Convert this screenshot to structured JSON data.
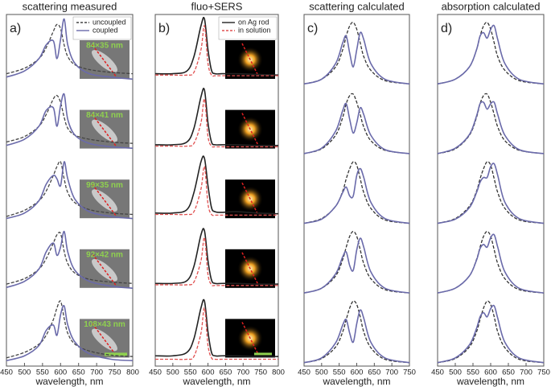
{
  "chart_data": [
    {
      "type": "line",
      "title": "scattering measured",
      "panel": "a)",
      "xlabel": "wavelength, nm",
      "xlim": [
        450,
        800
      ],
      "xticks": [
        450,
        500,
        550,
        600,
        650,
        700,
        750,
        800
      ],
      "legend": "upper right",
      "x": [
        450,
        500,
        540,
        560,
        580,
        590,
        600,
        610,
        620,
        640,
        680,
        740,
        800
      ],
      "insets": [
        "84×35 nm",
        "84×41 nm",
        "99×35 nm",
        "92×42 nm",
        "108×43 nm"
      ],
      "series": [
        {
          "name": "uncoupled",
          "color": "#444444",
          "dash": true,
          "values": [
            [
              0.2,
              0.28,
              0.42,
              0.58,
              0.82,
              0.92,
              0.86,
              0.62,
              0.45,
              0.33,
              0.26,
              0.22,
              0.2
            ],
            [
              0.22,
              0.3,
              0.45,
              0.62,
              0.85,
              0.9,
              0.8,
              0.58,
              0.42,
              0.32,
              0.26,
              0.22,
              0.2
            ],
            [
              0.15,
              0.24,
              0.38,
              0.52,
              0.75,
              0.88,
              0.95,
              0.7,
              0.5,
              0.35,
              0.25,
              0.2,
              0.18
            ],
            [
              0.18,
              0.26,
              0.4,
              0.55,
              0.78,
              0.9,
              0.92,
              0.66,
              0.48,
              0.34,
              0.25,
              0.21,
              0.19
            ],
            [
              0.12,
              0.2,
              0.32,
              0.45,
              0.68,
              0.85,
              0.95,
              0.7,
              0.48,
              0.32,
              0.22,
              0.16,
              0.14
            ]
          ]
        },
        {
          "name": "coupled",
          "color": "#6a6aaa",
          "dash": false,
          "values": [
            [
              0.15,
              0.24,
              0.42,
              0.62,
              0.68,
              0.42,
              0.7,
              1.0,
              0.62,
              0.35,
              0.2,
              0.15,
              0.12
            ],
            [
              0.17,
              0.26,
              0.45,
              0.68,
              0.72,
              0.45,
              0.75,
              0.92,
              0.55,
              0.32,
              0.2,
              0.15,
              0.13
            ],
            [
              0.12,
              0.2,
              0.38,
              0.62,
              0.75,
              0.7,
              0.6,
              0.95,
              0.7,
              0.4,
              0.22,
              0.15,
              0.12
            ],
            [
              0.13,
              0.22,
              0.4,
              0.65,
              0.78,
              0.6,
              0.72,
              0.95,
              0.65,
              0.38,
              0.22,
              0.15,
              0.12
            ],
            [
              0.08,
              0.15,
              0.3,
              0.52,
              0.6,
              0.45,
              0.75,
              0.88,
              0.6,
              0.35,
              0.18,
              0.1,
              0.08
            ]
          ]
        }
      ]
    },
    {
      "type": "line",
      "title": "fluo+SERS",
      "panel": "b)",
      "xlabel": "wavelength, nm",
      "xlim": [
        450,
        800
      ],
      "xticks": [
        450,
        500,
        550,
        600,
        650,
        700,
        750,
        800
      ],
      "legend": "upper right",
      "x": [
        450,
        500,
        540,
        560,
        580,
        590,
        600,
        610,
        620,
        640,
        680,
        740,
        800
      ],
      "series": [
        {
          "name": "on Ag rod",
          "color": "#222222",
          "dash": false,
          "values": [
            [
              0.2,
              0.2,
              0.24,
              0.45,
              0.9,
              1.0,
              0.55,
              0.25,
              0.2,
              0.2,
              0.2,
              0.19,
              0.18
            ],
            [
              0.18,
              0.18,
              0.22,
              0.42,
              0.88,
              0.98,
              0.5,
              0.22,
              0.18,
              0.18,
              0.18,
              0.17,
              0.17
            ],
            [
              0.2,
              0.2,
              0.25,
              0.5,
              0.95,
              1.0,
              0.6,
              0.28,
              0.22,
              0.21,
              0.22,
              0.2,
              0.19
            ],
            [
              0.19,
              0.19,
              0.23,
              0.44,
              0.9,
              0.96,
              0.52,
              0.24,
              0.19,
              0.19,
              0.19,
              0.18,
              0.18
            ],
            [
              0.15,
              0.15,
              0.2,
              0.4,
              0.85,
              0.95,
              0.5,
              0.2,
              0.15,
              0.15,
              0.15,
              0.14,
              0.14
            ]
          ]
        },
        {
          "name": "in solution",
          "color": "#e05050",
          "dash": true,
          "values": [
            [
              0.18,
              0.18,
              0.18,
              0.22,
              0.55,
              0.9,
              0.35,
              0.18,
              0.17,
              0.17,
              0.17,
              0.17,
              0.17
            ],
            [
              0.16,
              0.16,
              0.16,
              0.2,
              0.5,
              0.85,
              0.3,
              0.16,
              0.15,
              0.15,
              0.15,
              0.15,
              0.15
            ],
            [
              0.18,
              0.18,
              0.18,
              0.22,
              0.55,
              0.88,
              0.33,
              0.18,
              0.17,
              0.17,
              0.17,
              0.17,
              0.17
            ],
            [
              0.17,
              0.17,
              0.17,
              0.21,
              0.52,
              0.86,
              0.32,
              0.17,
              0.16,
              0.16,
              0.16,
              0.16,
              0.16
            ],
            [
              0.1,
              0.1,
              0.1,
              0.14,
              0.48,
              0.85,
              0.3,
              0.12,
              0.1,
              0.1,
              0.1,
              0.1,
              0.1
            ]
          ]
        }
      ]
    },
    {
      "type": "line",
      "title": "scattering calculated",
      "panel": "c)",
      "xlabel": "wavelength, nm",
      "xlim": [
        450,
        750
      ],
      "xticks": [
        450,
        500,
        550,
        600,
        650,
        700,
        750
      ],
      "x": [
        450,
        500,
        540,
        560,
        570,
        580,
        590,
        600,
        610,
        620,
        640,
        680,
        750
      ],
      "series": [
        {
          "color": "#333333",
          "dash": true,
          "values": [
            [
              0.05,
              0.12,
              0.3,
              0.55,
              0.75,
              0.9,
              0.95,
              0.85,
              0.65,
              0.45,
              0.25,
              0.1,
              0.05
            ],
            [
              0.05,
              0.12,
              0.32,
              0.58,
              0.78,
              0.9,
              0.92,
              0.8,
              0.62,
              0.44,
              0.24,
              0.1,
              0.05
            ],
            [
              0.05,
              0.12,
              0.3,
              0.52,
              0.7,
              0.85,
              0.95,
              0.9,
              0.7,
              0.5,
              0.27,
              0.1,
              0.05
            ],
            [
              0.05,
              0.12,
              0.3,
              0.54,
              0.72,
              0.88,
              0.95,
              0.88,
              0.68,
              0.48,
              0.26,
              0.1,
              0.05
            ],
            [
              0.05,
              0.11,
              0.28,
              0.5,
              0.68,
              0.85,
              0.95,
              0.9,
              0.72,
              0.5,
              0.27,
              0.1,
              0.05
            ]
          ]
        },
        {
          "color": "#6a6aaa",
          "dash": false,
          "values": [
            [
              0.05,
              0.12,
              0.35,
              0.65,
              0.75,
              0.5,
              0.3,
              0.55,
              0.8,
              0.7,
              0.35,
              0.12,
              0.05
            ],
            [
              0.05,
              0.13,
              0.38,
              0.68,
              0.78,
              0.55,
              0.35,
              0.5,
              0.72,
              0.62,
              0.32,
              0.11,
              0.05
            ],
            [
              0.05,
              0.11,
              0.3,
              0.5,
              0.58,
              0.45,
              0.45,
              0.75,
              0.85,
              0.72,
              0.36,
              0.12,
              0.05
            ],
            [
              0.05,
              0.12,
              0.33,
              0.58,
              0.65,
              0.45,
              0.38,
              0.68,
              0.85,
              0.72,
              0.36,
              0.12,
              0.05
            ],
            [
              0.05,
              0.12,
              0.34,
              0.6,
              0.68,
              0.48,
              0.35,
              0.62,
              0.82,
              0.7,
              0.35,
              0.12,
              0.05
            ]
          ]
        }
      ]
    },
    {
      "type": "line",
      "title": "absorption calculated",
      "panel": "d)",
      "xlabel": "wavelength, nm",
      "xlim": [
        450,
        750
      ],
      "xticks": [
        450,
        500,
        550,
        600,
        650,
        700,
        750
      ],
      "x": [
        450,
        500,
        540,
        560,
        570,
        580,
        590,
        600,
        610,
        620,
        640,
        680,
        750
      ],
      "series": [
        {
          "color": "#333333",
          "dash": true,
          "values": [
            [
              0.05,
              0.12,
              0.3,
              0.55,
              0.75,
              0.9,
              0.95,
              0.85,
              0.65,
              0.45,
              0.25,
              0.1,
              0.05
            ],
            [
              0.05,
              0.12,
              0.32,
              0.58,
              0.78,
              0.9,
              0.92,
              0.8,
              0.62,
              0.44,
              0.24,
              0.1,
              0.05
            ],
            [
              0.05,
              0.12,
              0.3,
              0.52,
              0.7,
              0.85,
              0.95,
              0.9,
              0.7,
              0.5,
              0.27,
              0.1,
              0.05
            ],
            [
              0.05,
              0.12,
              0.3,
              0.54,
              0.72,
              0.88,
              0.95,
              0.88,
              0.68,
              0.48,
              0.26,
              0.1,
              0.05
            ],
            [
              0.05,
              0.11,
              0.28,
              0.5,
              0.68,
              0.85,
              0.95,
              0.9,
              0.72,
              0.5,
              0.27,
              0.1,
              0.05
            ]
          ]
        },
        {
          "color": "#6a6aaa",
          "dash": false,
          "values": [
            [
              0.05,
              0.12,
              0.3,
              0.55,
              0.75,
              0.8,
              0.72,
              0.85,
              0.9,
              0.7,
              0.35,
              0.12,
              0.05
            ],
            [
              0.05,
              0.13,
              0.33,
              0.6,
              0.78,
              0.8,
              0.7,
              0.78,
              0.8,
              0.62,
              0.32,
              0.11,
              0.05
            ],
            [
              0.05,
              0.11,
              0.28,
              0.5,
              0.65,
              0.72,
              0.72,
              0.88,
              0.92,
              0.75,
              0.36,
              0.12,
              0.05
            ],
            [
              0.05,
              0.12,
              0.3,
              0.53,
              0.7,
              0.76,
              0.72,
              0.86,
              0.9,
              0.72,
              0.36,
              0.12,
              0.05
            ],
            [
              0.05,
              0.12,
              0.31,
              0.55,
              0.72,
              0.78,
              0.72,
              0.84,
              0.88,
              0.7,
              0.35,
              0.12,
              0.05
            ]
          ]
        }
      ]
    }
  ]
}
